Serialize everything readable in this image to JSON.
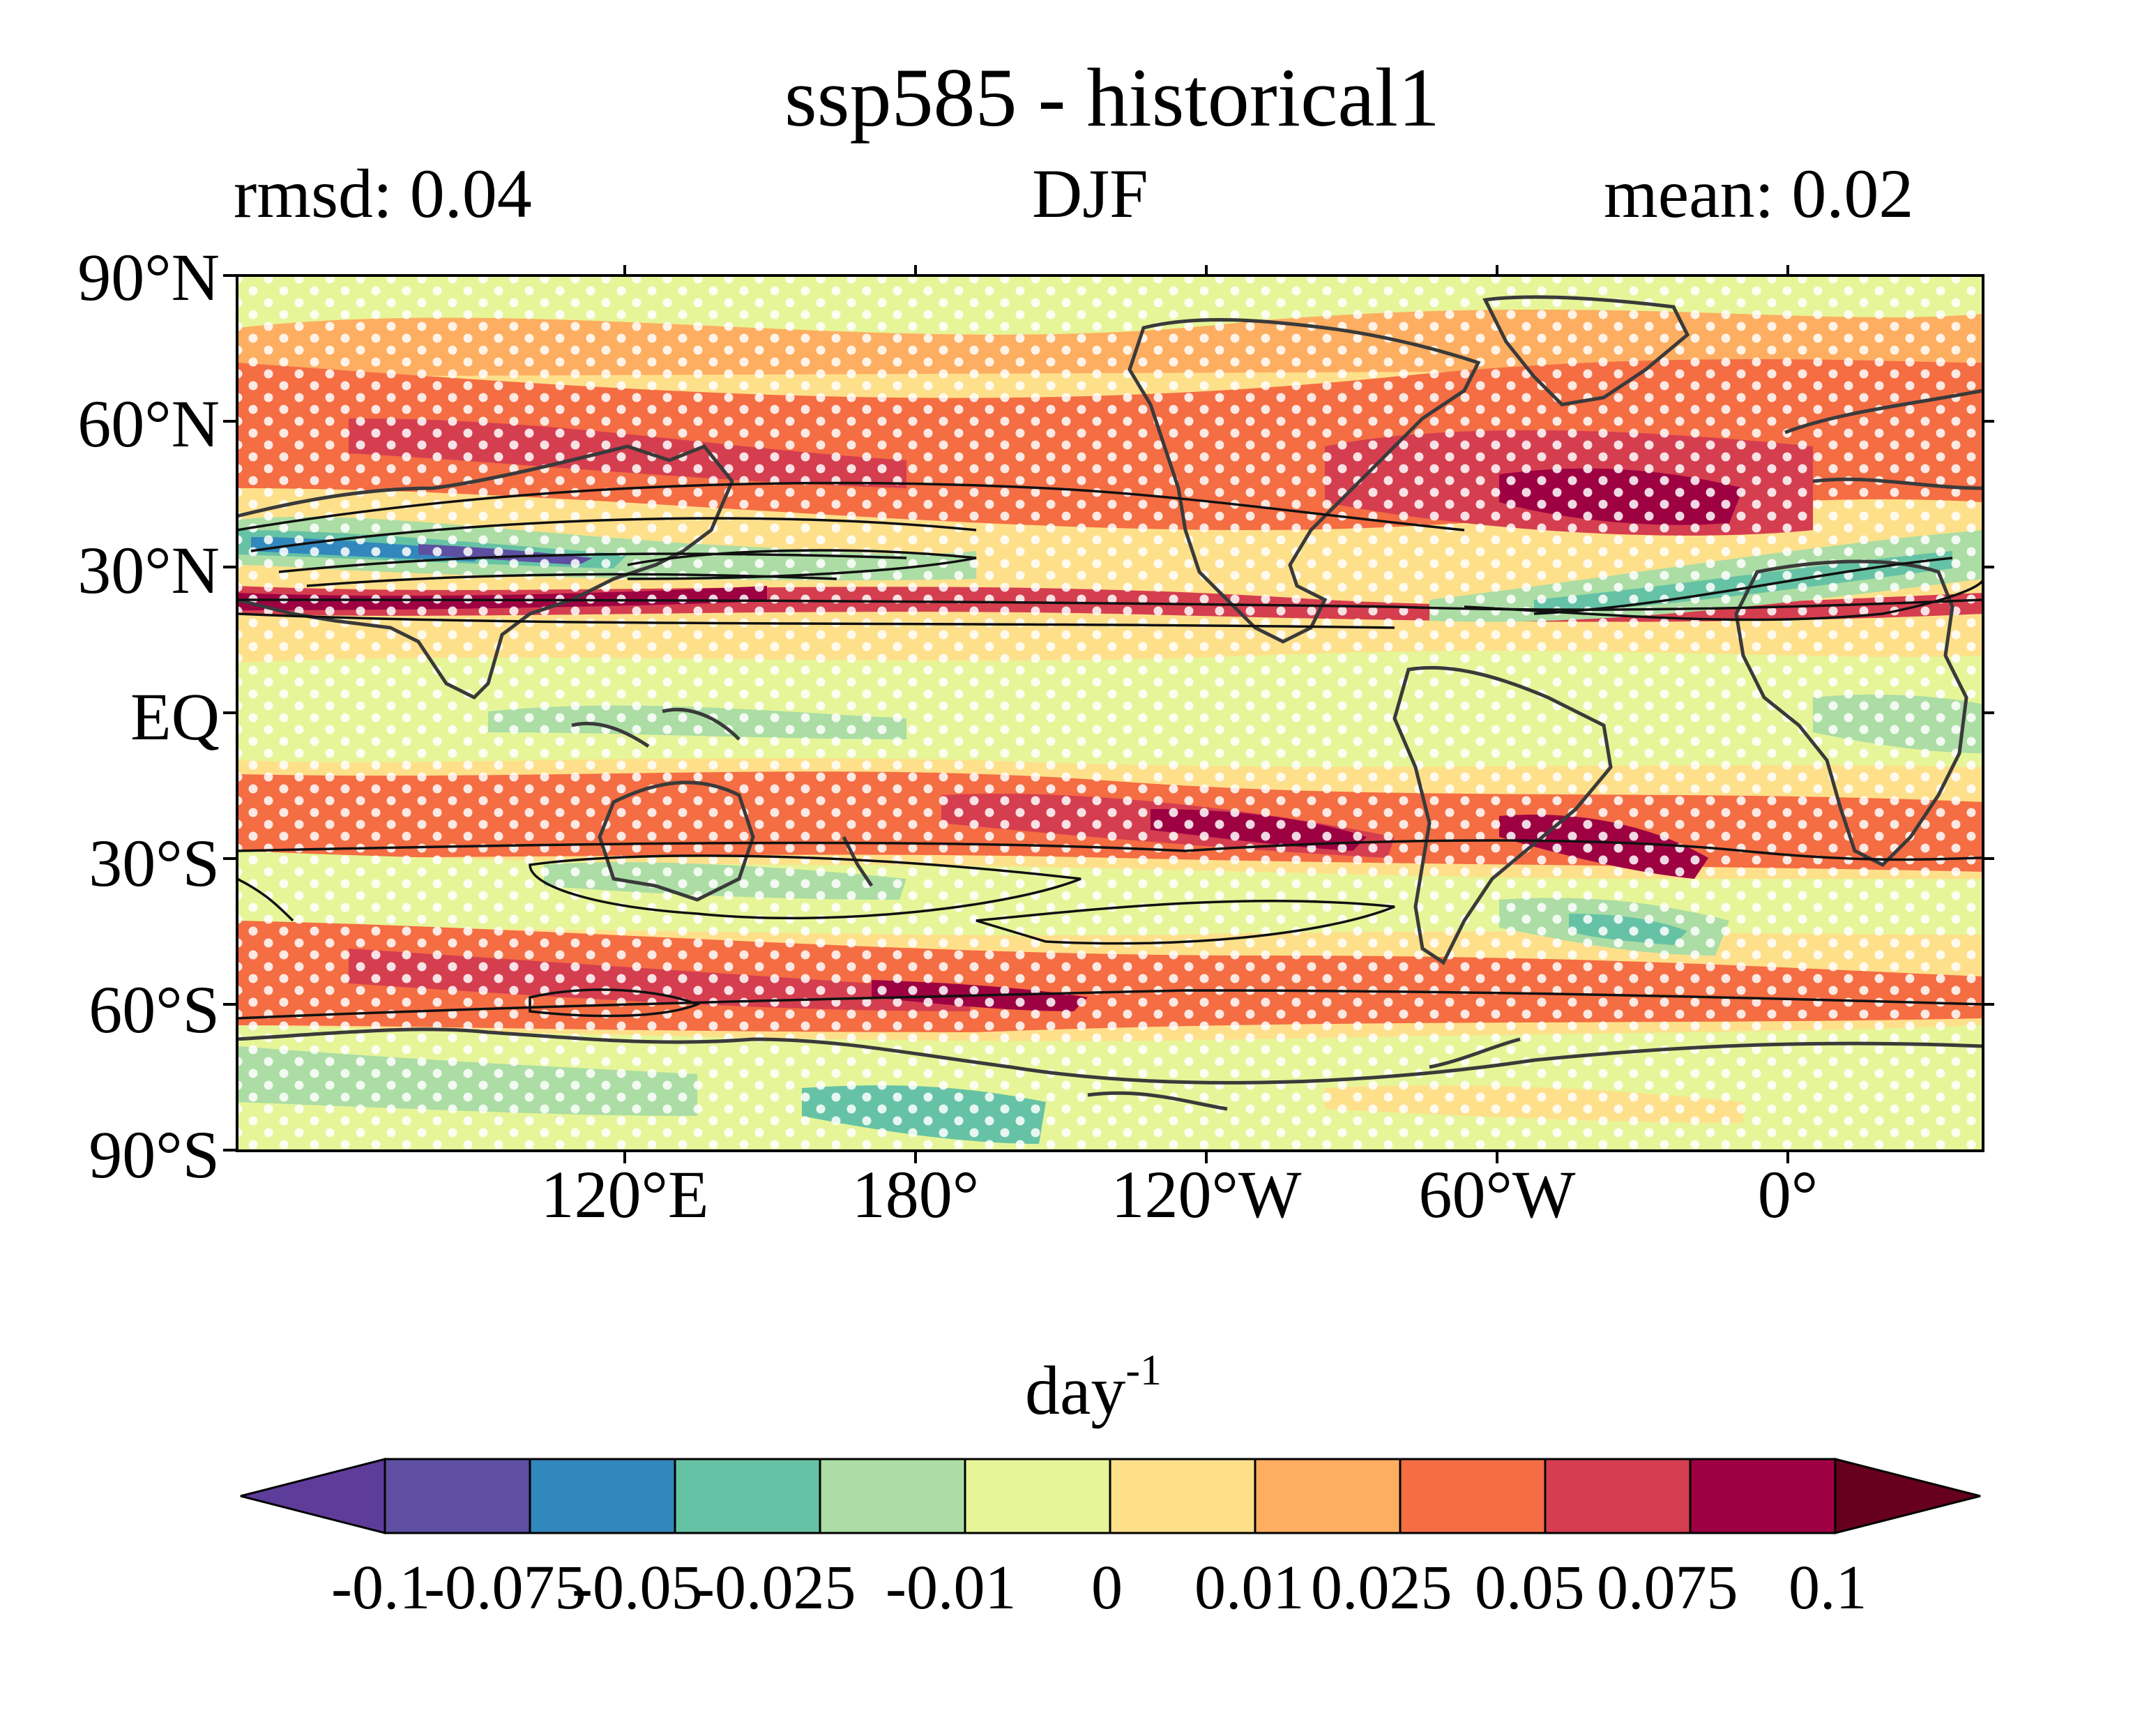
{
  "title": "ssp585 - historical1",
  "subtitle_left": "rmsd: 0.04",
  "subtitle_center": "DJF",
  "subtitle_right": "mean: 0.02",
  "map": {
    "lat_labels": [
      "90°N",
      "60°N",
      "30°N",
      "EQ",
      "30°S",
      "60°S",
      "90°S"
    ],
    "lon_labels": [
      "120°E",
      "180°",
      "120°W",
      "60°W",
      "0°"
    ],
    "stippling": "white dots mark non-significant areas",
    "contours": "black climatology contours"
  },
  "colorbar": {
    "unit_base": "day",
    "unit_exp": "-1",
    "tick_text": "-0.1-0.0750.050.0250.01  0   0.010.0250.050.075 0.1",
    "levels": [
      "-0.1",
      "-0.075",
      "-0.05",
      "-0.025",
      "-0.01",
      "0",
      "0.01",
      "0.025",
      "0.05",
      "0.075",
      "0.1"
    ],
    "colors": [
      "#5e3c99",
      "#5e4fa2",
      "#3288bd",
      "#66c2a5",
      "#abdda4",
      "#e6f598",
      "#fee08b",
      "#fdae61",
      "#f46d43",
      "#d53e4f",
      "#9e0142",
      "#67001f"
    ]
  }
}
